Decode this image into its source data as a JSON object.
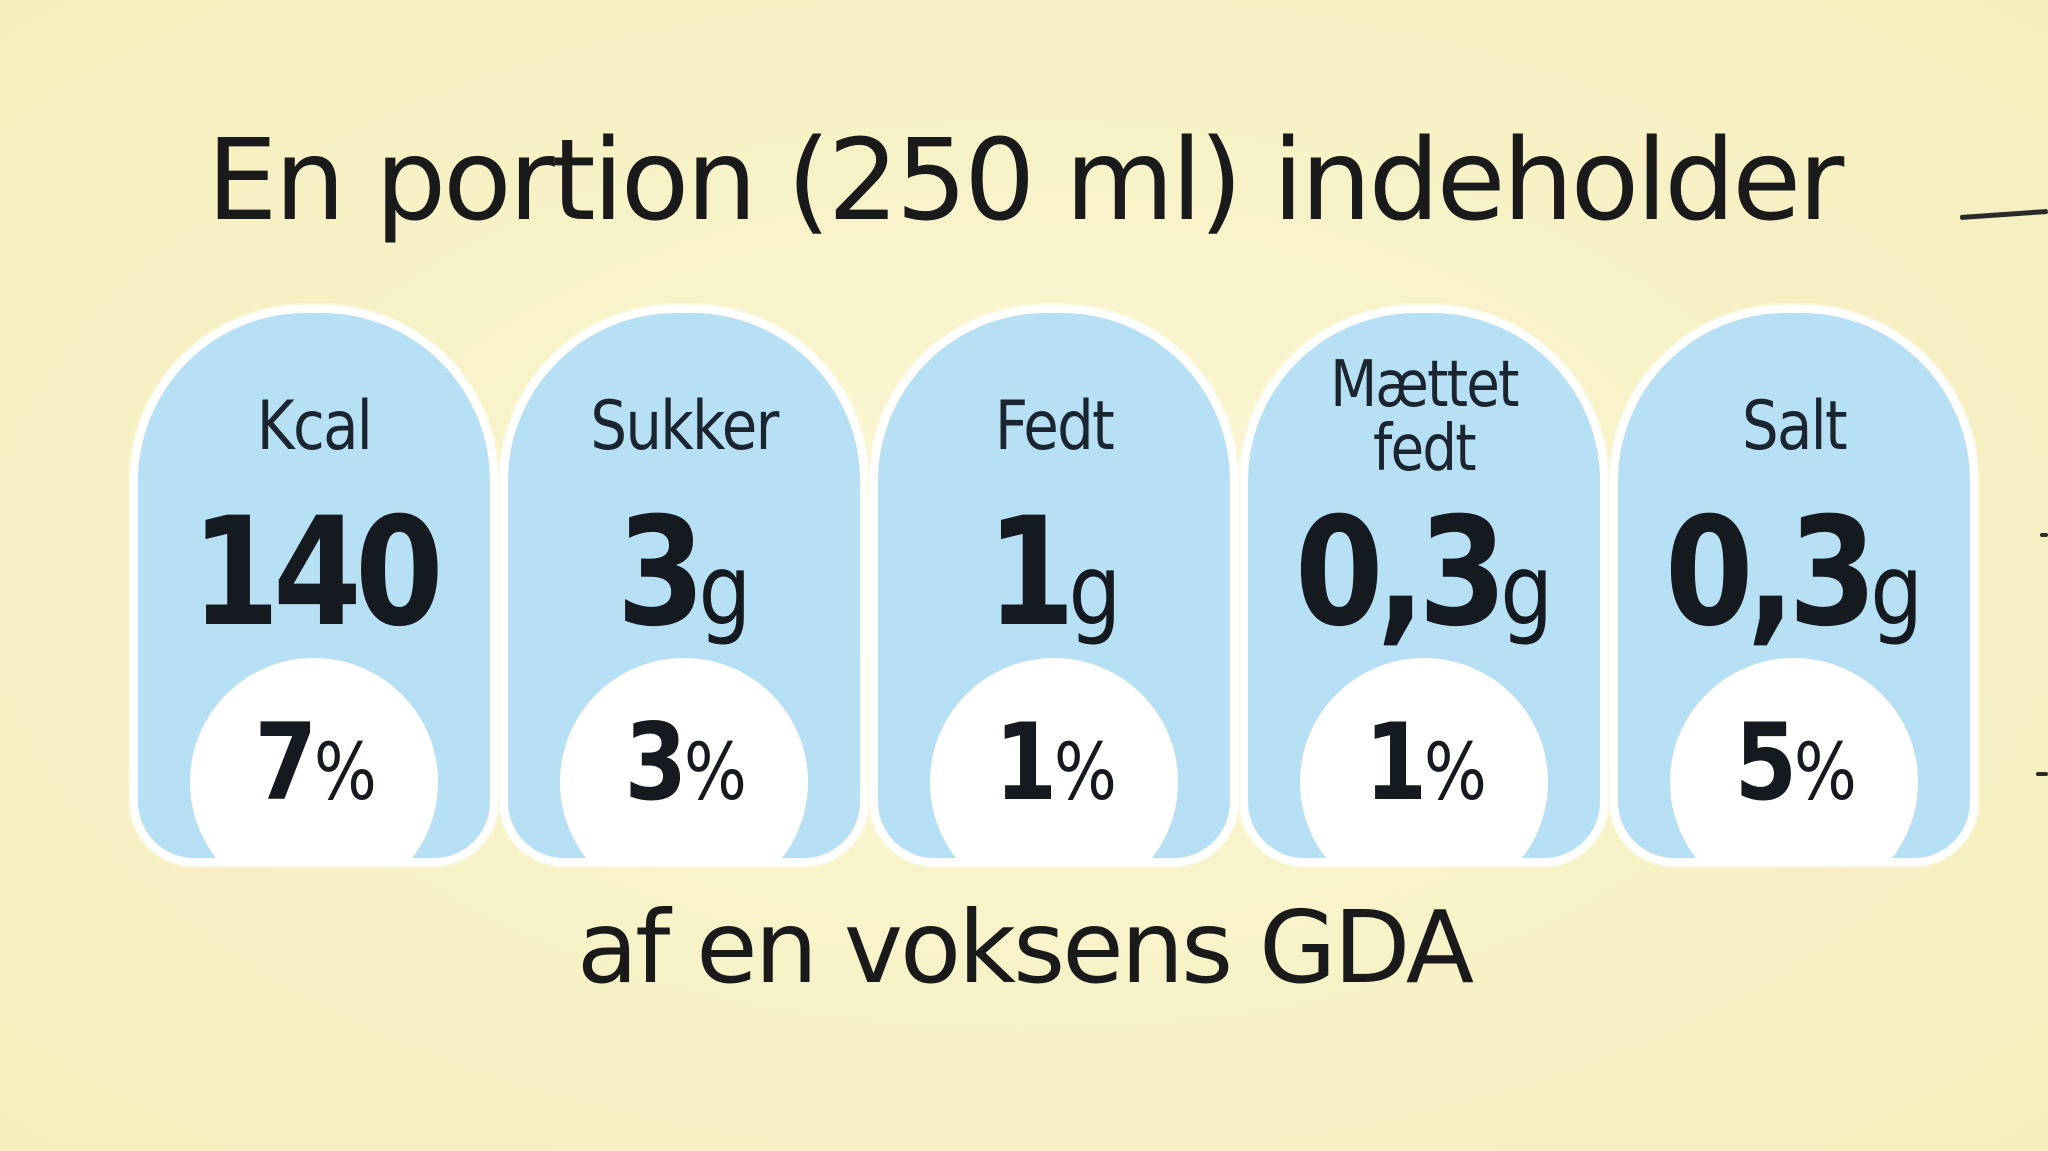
{
  "heading": "En portion (250 ml) indeholder",
  "footer": "af en voksens GDA",
  "colors": {
    "background": "#f9f3c9",
    "badge_fill": "#b8e0f5",
    "badge_border": "#ffffff",
    "text": "#1a1a1a"
  },
  "nutrients": [
    {
      "label": "Kcal",
      "value": "140",
      "unit": "",
      "percent": "7",
      "percent_sign": "%"
    },
    {
      "label": "Sukker",
      "value": "3",
      "unit": "g",
      "percent": "3",
      "percent_sign": "%"
    },
    {
      "label": "Fedt",
      "value": "1",
      "unit": "g",
      "percent": "1",
      "percent_sign": "%"
    },
    {
      "label": "Mættet\nfedt",
      "value": "0,3",
      "unit": "g",
      "percent": "1",
      "percent_sign": "%"
    },
    {
      "label": "Salt",
      "value": "0,3",
      "unit": "g",
      "percent": "5",
      "percent_sign": "%"
    }
  ]
}
